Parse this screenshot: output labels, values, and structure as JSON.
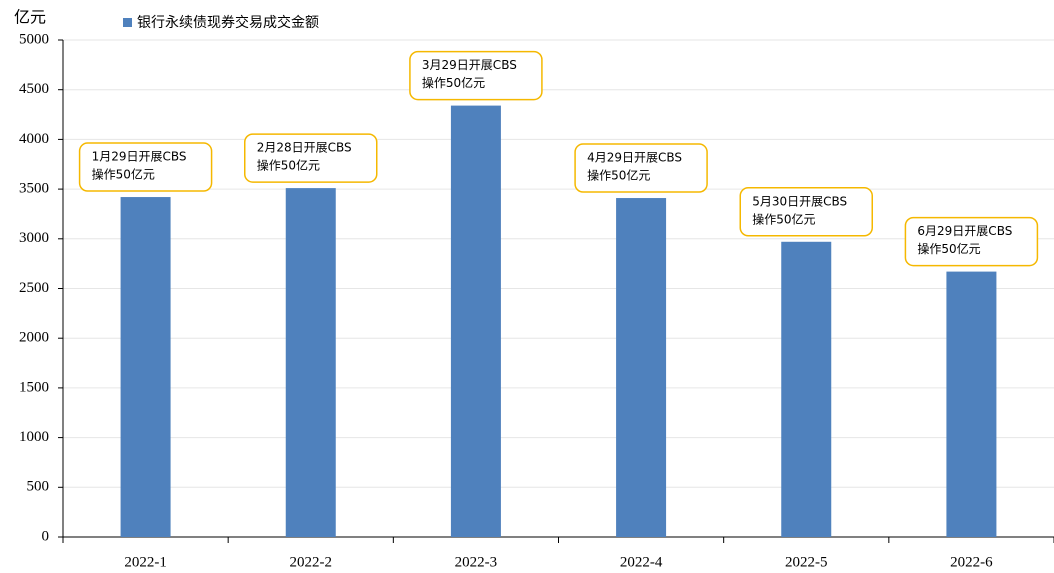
{
  "chart_data": {
    "type": "bar",
    "y_label": "亿元",
    "categories": [
      "2022-1",
      "2022-2",
      "2022-3",
      "2022-4",
      "2022-5",
      "2022-6"
    ],
    "series": [
      {
        "name": "银行永续债现券交易成交金额",
        "color": "#4f81bd",
        "values": [
          3420,
          3510,
          4340,
          3410,
          2970,
          2670
        ]
      }
    ],
    "ylim": [
      0,
      5000
    ],
    "yticks": [
      0,
      500,
      1000,
      1500,
      2000,
      2500,
      3000,
      3500,
      4000,
      4500,
      5000
    ],
    "grid": true,
    "annotations": [
      [
        "1月29日开展CBS",
        "操作50亿元"
      ],
      [
        "2月28日开展CBS",
        "操作50亿元"
      ],
      [
        "3月29日开展CBS",
        "操作50亿元"
      ],
      [
        "4月29日开展CBS",
        "操作50亿元"
      ],
      [
        "5月30日开展CBS",
        "操作50亿元"
      ],
      [
        "6月29日开展CBS",
        "操作50亿元"
      ]
    ],
    "annotation_color": "#f5b800"
  }
}
